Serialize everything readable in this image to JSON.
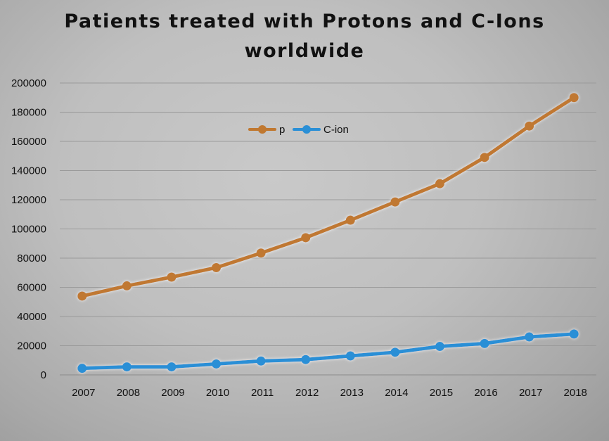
{
  "chart_data": {
    "type": "line",
    "title": "Patients treated with Protons and C-Ions worldwide",
    "title_lines": [
      "Patients treated with Protons and C-Ions",
      "worldwide"
    ],
    "categories": [
      "2007",
      "2008",
      "2009",
      "2010",
      "2011",
      "2012",
      "2013",
      "2014",
      "2015",
      "2016",
      "2017",
      "2018"
    ],
    "series": [
      {
        "name": "p",
        "color": "#c07830",
        "values": [
          54000,
          61000,
          67000,
          73500,
          83500,
          94000,
          106000,
          118500,
          131000,
          149000,
          170500,
          190000
        ]
      },
      {
        "name": "C-ion",
        "color": "#2a8fd6",
        "values": [
          4500,
          5500,
          5500,
          7500,
          9500,
          10500,
          13000,
          15500,
          19500,
          21500,
          26000,
          28000
        ]
      }
    ],
    "y_ticks": [
      "0",
      "20000",
      "40000",
      "60000",
      "80000",
      "100000",
      "120000",
      "140000",
      "160000",
      "180000",
      "200000"
    ],
    "ylim": [
      0,
      200000
    ],
    "xlabel": "",
    "ylabel": "",
    "grid": true,
    "legend_position": "top-center"
  }
}
